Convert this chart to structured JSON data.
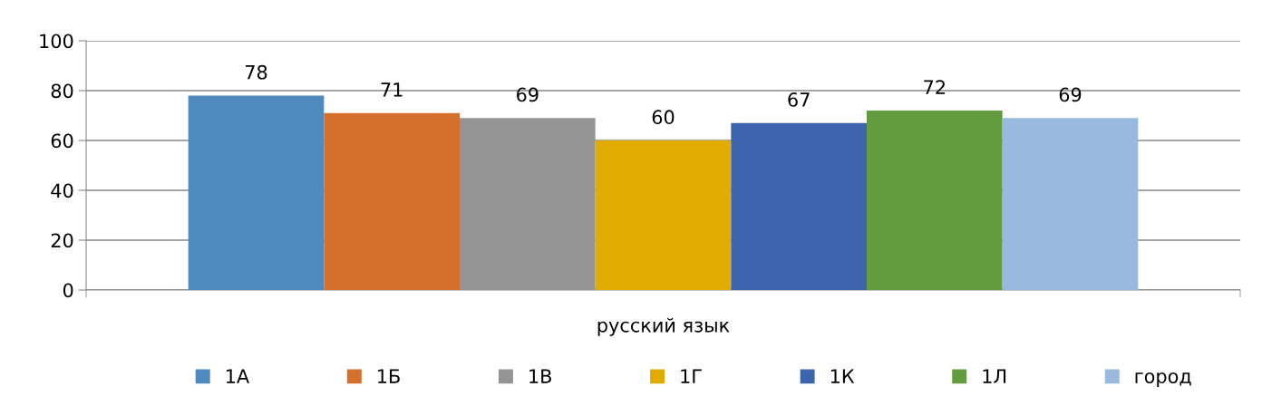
{
  "chart_data": {
    "type": "bar",
    "categories": [
      "русский язык"
    ],
    "series": [
      {
        "name": "1А",
        "color": "#4f8abf",
        "values": [
          78
        ]
      },
      {
        "name": "1Б",
        "color": "#d4702c",
        "values": [
          71
        ]
      },
      {
        "name": "1В",
        "color": "#949494",
        "values": [
          69
        ]
      },
      {
        "name": "1Г",
        "color": "#e2ab00",
        "values": [
          60
        ]
      },
      {
        "name": "1К",
        "color": "#3d65ad",
        "values": [
          67
        ]
      },
      {
        "name": "1Л",
        "color": "#629c3f",
        "values": [
          72
        ]
      },
      {
        "name": "город",
        "color": "#99b9df",
        "values": [
          69
        ]
      }
    ],
    "ylim": [
      0,
      100
    ],
    "yticks": [
      0,
      20,
      40,
      60,
      80,
      100
    ],
    "grid": "y",
    "legend": "bottom",
    "data_labels": true
  }
}
